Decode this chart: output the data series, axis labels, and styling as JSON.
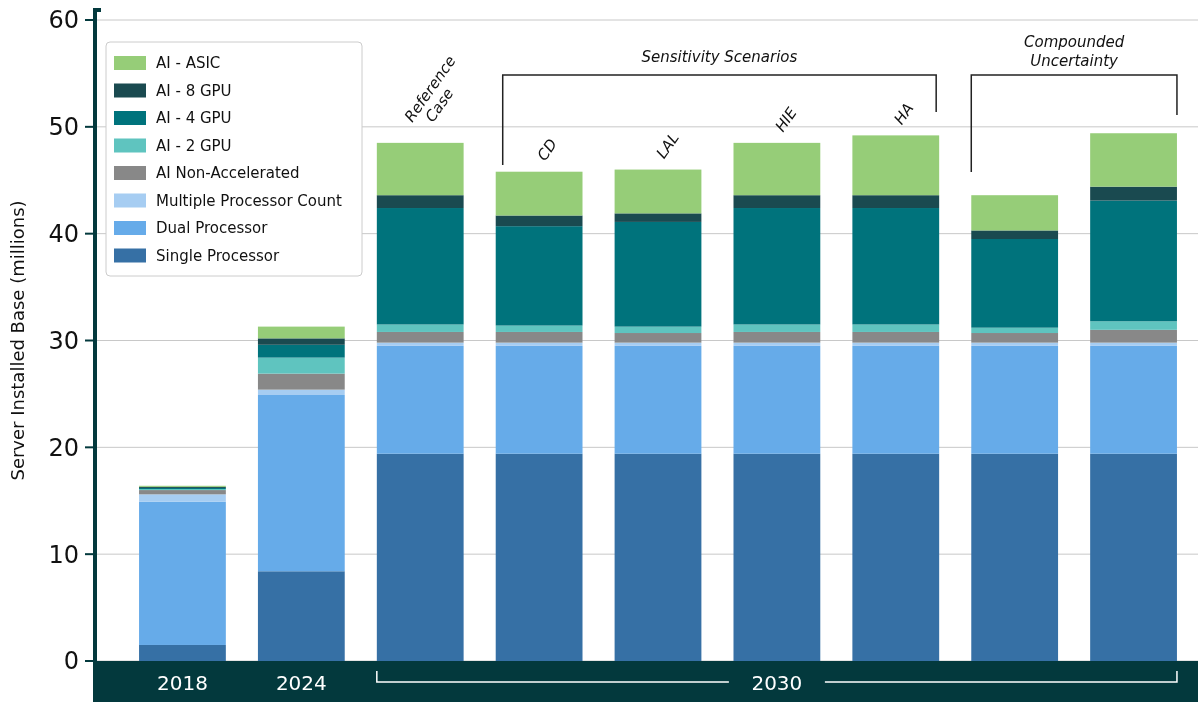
{
  "chart_data": {
    "type": "bar",
    "stacked": true,
    "ylabel": "Server Installed Base (millions)",
    "categories": [
      "2018",
      "2024",
      null,
      null,
      null,
      null,
      null,
      null,
      null
    ],
    "ylim": [
      0,
      60
    ],
    "yticks": [
      0,
      10,
      20,
      30,
      40,
      50,
      60
    ],
    "grid": "y",
    "legend": "top left",
    "series": [
      {
        "name": "Single Processor",
        "color": "#3670a5",
        "values": [
          1.5,
          8.4,
          19.4,
          19.4,
          19.4,
          19.4,
          19.4,
          19.4,
          19.4
        ]
      },
      {
        "name": "Dual Processor",
        "color": "#66abe9",
        "values": [
          13.4,
          16.5,
          10.1,
          10.1,
          10.1,
          10.1,
          10.1,
          10.1,
          10.1
        ]
      },
      {
        "name": "Multiple Processor Count",
        "color": "#a6cdf2",
        "values": [
          0.7,
          0.5,
          0.3,
          0.3,
          0.3,
          0.3,
          0.3,
          0.3,
          0.3
        ]
      },
      {
        "name": "AI Non-Accelerated",
        "color": "#888888",
        "values": [
          0.4,
          1.5,
          1.0,
          1.0,
          0.9,
          1.0,
          1.0,
          0.9,
          1.2
        ]
      },
      {
        "name": "AI - 2 GPU",
        "color": "#5fc4bf",
        "values": [
          0.1,
          1.5,
          0.7,
          0.6,
          0.6,
          0.7,
          0.7,
          0.5,
          0.8
        ]
      },
      {
        "name": "AI - 4 GPU",
        "color": "#00737c",
        "values": [
          0.1,
          1.2,
          10.9,
          9.3,
          9.8,
          10.9,
          10.9,
          8.3,
          11.3
        ]
      },
      {
        "name": "AI - 8 GPU",
        "color": "#1a4a50",
        "values": [
          0.1,
          0.6,
          1.2,
          1.0,
          0.8,
          1.2,
          1.2,
          0.8,
          1.3
        ]
      },
      {
        "name": "AI - ASIC",
        "color": "#96cd78",
        "values": [
          0.1,
          1.1,
          4.9,
          4.1,
          4.1,
          4.9,
          5.6,
          3.3,
          5.0
        ]
      }
    ],
    "annotations": [
      "Sensitivity Scenarios",
      "Compounded Uncertainty",
      "2030",
      "Reference Case",
      "CD",
      "LAL",
      "HIE",
      "HA"
    ]
  }
}
